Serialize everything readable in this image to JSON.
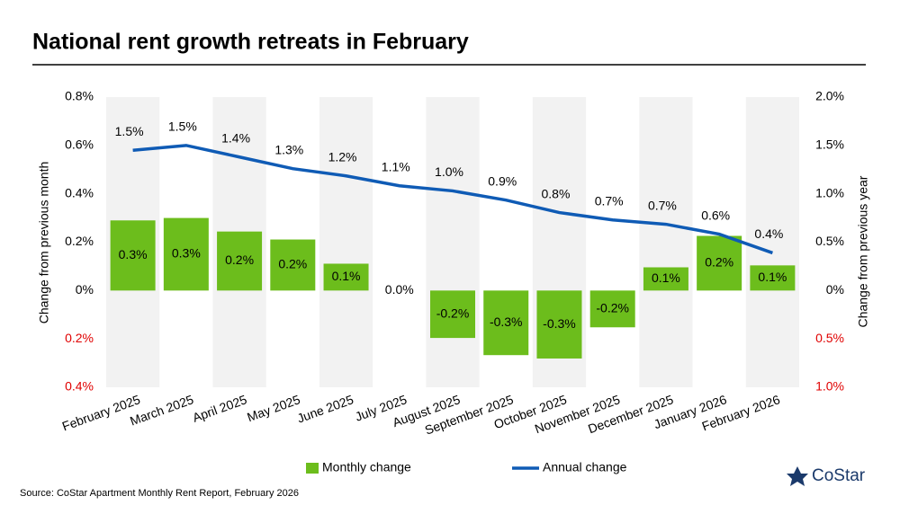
{
  "chart_data": {
    "type": "bar_line",
    "title": "National rent growth retreats in February",
    "source": "Source: CoStar Apartment Monthly Rent Report, February 2026",
    "logo": "CoStar",
    "y_label": "Change from previous month",
    "y2_label": "Change from previous year",
    "categories": [
      "February 2025",
      "March 2025",
      "April 2025",
      "May 2025",
      "June 2025",
      "July 2025",
      "August 2025",
      "September 2025",
      "October 2025",
      "November 2025",
      "December 2025",
      "January 2026",
      "February 2026"
    ],
    "ylim": [
      -0.4,
      0.8
    ],
    "yticks": [
      {
        "value": -0.4,
        "label": "0.4%"
      },
      {
        "value": -0.2,
        "label": "0.2%"
      },
      {
        "value": 0,
        "label": "0%"
      },
      {
        "value": 0.2,
        "label": "0.2%"
      },
      {
        "value": 0.4,
        "label": "0.4%"
      },
      {
        "value": 0.6,
        "label": "0.6%"
      },
      {
        "value": 0.8,
        "label": "0.8%"
      }
    ],
    "y2lim": [
      -1.0,
      2.0
    ],
    "y2ticks": [
      {
        "value": -1.0,
        "label": "1.0%"
      },
      {
        "value": -0.5,
        "label": "0.5%"
      },
      {
        "value": 0,
        "label": "0%"
      },
      {
        "value": 0.5,
        "label": "0.5%"
      },
      {
        "value": 1.0,
        "label": "1.0%"
      },
      {
        "value": 1.5,
        "label": "1.5%"
      },
      {
        "value": 2.0,
        "label": "2.0%"
      }
    ],
    "negative_tick_color": "#e00000",
    "band_shading": "#f2f2f2",
    "legend_position": "bottom",
    "series": [
      {
        "name": "Monthly change",
        "type": "bar",
        "axis": "y",
        "color": "#6cbd1c",
        "values": [
          0.29,
          0.3,
          0.244,
          0.211,
          0.111,
          0,
          -0.196,
          -0.267,
          -0.281,
          -0.152,
          0.096,
          0.226,
          0.104
        ],
        "value_labels": [
          "0.3%",
          "0.3%",
          "0.2%",
          "0.2%",
          "0.1%",
          "0.0%",
          "-0.2%",
          "-0.3%",
          "-0.3%",
          "-0.2%",
          "0.1%",
          "0.2%",
          "0.1%"
        ]
      },
      {
        "name": "Annual change",
        "type": "line",
        "axis": "y2",
        "color": "#0f5bb5",
        "values": [
          1.45,
          1.5,
          1.38,
          1.26,
          1.185,
          1.083,
          1.03,
          0.935,
          0.806,
          0.73,
          0.685,
          0.583,
          0.389
        ],
        "value_labels": [
          "1.5%",
          "1.5%",
          "1.4%",
          "1.3%",
          "1.2%",
          "1.1%",
          "1.0%",
          "0.9%",
          "0.8%",
          "0.7%",
          "0.7%",
          "0.6%",
          "0.4%"
        ]
      }
    ]
  }
}
